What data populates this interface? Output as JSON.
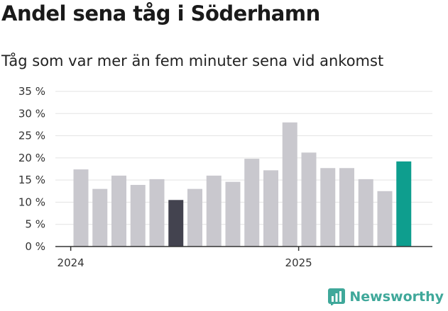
{
  "header": {
    "title": "Andel sena tåg i Söderhamn",
    "subtitle": "Tåg som var mer än fem minuter sena vid ankomst"
  },
  "brand": {
    "name": "Newsworthy",
    "color": "#3fa89a"
  },
  "colors": {
    "default": "#c9c8ce",
    "highlight_dark": "#43434f",
    "highlight_teal": "#0e9e8e",
    "grid": "#e3e3e3",
    "axis": "#333333"
  },
  "chart_data": {
    "type": "bar",
    "title": "Andel sena tåg i Söderhamn",
    "subtitle": "Tåg som var mer än fem minuter sena vid ankomst",
    "xlabel": "",
    "ylabel": "",
    "ylim": [
      0,
      35
    ],
    "yticks": [
      0,
      5,
      10,
      15,
      20,
      25,
      30,
      35
    ],
    "ytick_labels": [
      "0 %",
      "5 %",
      "10 %",
      "15 %",
      "20 %",
      "25 %",
      "30 %",
      "35 %"
    ],
    "x_tick_labels": [
      {
        "label": "2024",
        "index": 0
      },
      {
        "label": "2025",
        "index": 12
      }
    ],
    "grid": true,
    "values": [
      17.4,
      13.0,
      16.0,
      13.9,
      15.2,
      10.5,
      13.0,
      16.0,
      14.6,
      19.8,
      17.2,
      28.0,
      21.2,
      17.7,
      17.7,
      15.2,
      12.5,
      19.2
    ],
    "bar_colors": [
      "default",
      "default",
      "default",
      "default",
      "default",
      "highlight_dark",
      "default",
      "default",
      "default",
      "default",
      "default",
      "default",
      "default",
      "default",
      "default",
      "default",
      "default",
      "highlight_teal"
    ]
  }
}
